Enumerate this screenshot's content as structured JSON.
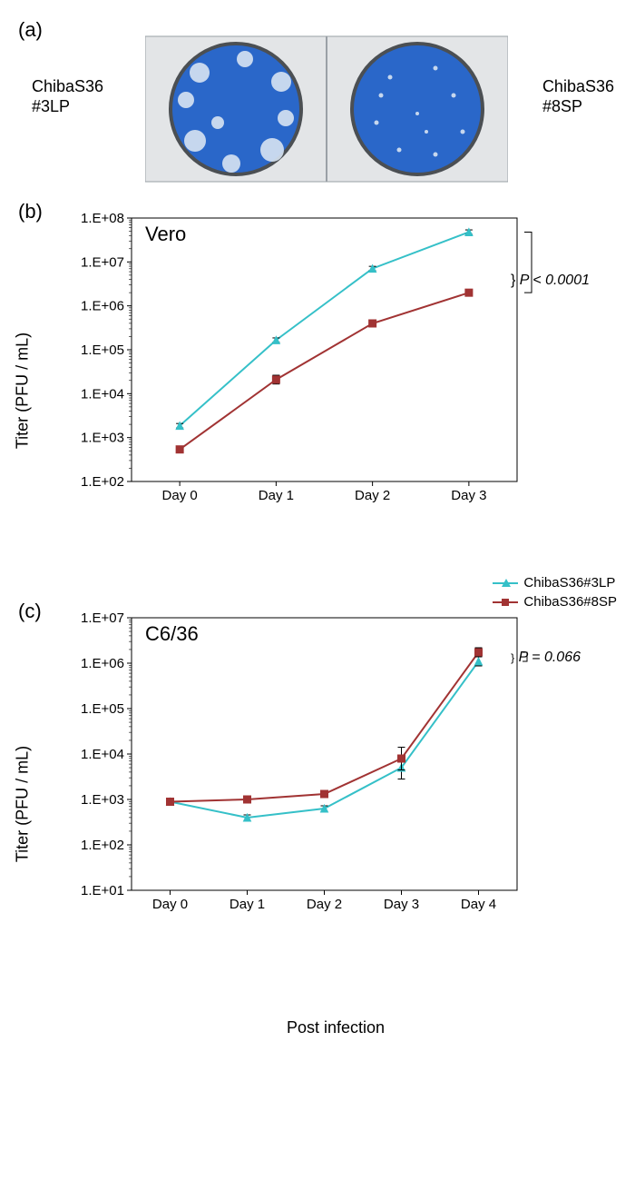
{
  "panel_labels": {
    "a": "(a)",
    "b": "(b)",
    "c": "(c)"
  },
  "panel_a": {
    "left_label_line1": "ChibaS36",
    "left_label_line2": "#3LP",
    "right_label_line1": "ChibaS36",
    "right_label_line2": "#8SP",
    "well_fill": "#2a67c9",
    "plate_color": "#bfc2c6",
    "plaque_color": "#d7e3f2",
    "well_border": "#4b4f53"
  },
  "chart_b": {
    "title": "Vero",
    "title_fontsize": 22,
    "type": "line",
    "ylabel": "Titer (PFU / mL)",
    "categories": [
      "Day 0",
      "Day 1",
      "Day 2",
      "Day 3"
    ],
    "y_ticks": [
      "1.E+02",
      "1.E+03",
      "1.E+04",
      "1.E+05",
      "1.E+06",
      "1.E+07",
      "1.E+08"
    ],
    "y_log_min": 2,
    "y_log_max": 8,
    "series": [
      {
        "name": "ChibaS36#3LP",
        "color": "#35c0c8",
        "marker": "triangle",
        "values_log10": [
          3.27,
          5.22,
          6.85,
          7.68
        ],
        "err_log10": [
          0.05,
          0.05,
          0.05,
          0.05
        ]
      },
      {
        "name": "ChibaS36#8SP",
        "color": "#a13333",
        "marker": "square",
        "values_log10": [
          2.73,
          4.32,
          5.6,
          6.3
        ],
        "err_log10": [
          0.06,
          0.1,
          0.05,
          0.07
        ]
      }
    ],
    "p_text": "P < 0.0001",
    "line_width": 2,
    "marker_size": 8,
    "tick_fontsize": 15,
    "grid_color": "#cccccc",
    "axis_color": "#000000"
  },
  "chart_c": {
    "title": "C6/36",
    "title_fontsize": 22,
    "type": "line",
    "ylabel": "Titer (PFU / mL)",
    "xlabel": "Post infection",
    "categories": [
      "Day 0",
      "Day 1",
      "Day 2",
      "Day 3",
      "Day 4"
    ],
    "y_ticks": [
      "1.E+01",
      "1.E+02",
      "1.E+03",
      "1.E+04",
      "1.E+05",
      "1.E+06",
      "1.E+07"
    ],
    "y_log_min": 1,
    "y_log_max": 7,
    "series": [
      {
        "name": "ChibaS36#3LP",
        "color": "#35c0c8",
        "marker": "triangle",
        "values_log10": [
          2.95,
          2.6,
          2.8,
          3.7,
          6.04
        ],
        "err_log10": [
          0.05,
          0.06,
          0.06,
          0.25,
          0.1
        ]
      },
      {
        "name": "ChibaS36#8SP",
        "color": "#a13333",
        "marker": "square",
        "values_log10": [
          2.95,
          3.0,
          3.12,
          3.9,
          6.24
        ],
        "err_log10": [
          0.05,
          0.04,
          0.05,
          0.25,
          0.1
        ]
      }
    ],
    "p_text": "P = 0.066",
    "line_width": 2,
    "marker_size": 8,
    "tick_fontsize": 15,
    "grid_color": "#cccccc",
    "axis_color": "#000000"
  },
  "legend": {
    "item1": "ChibaS36#3LP",
    "item2": "ChibaS36#8SP"
  }
}
